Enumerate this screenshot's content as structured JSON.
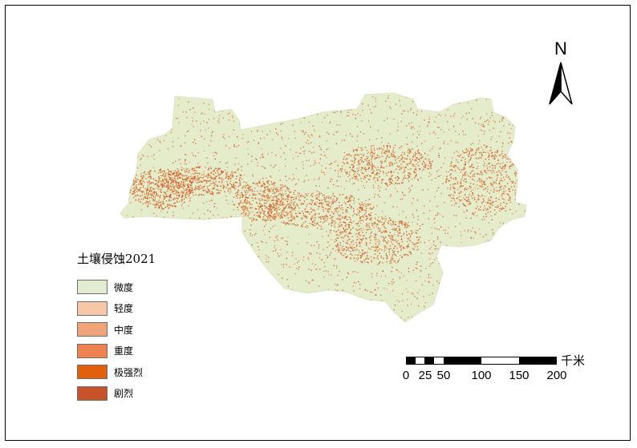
{
  "map": {
    "land_color": "#e4eccc",
    "dot_color": "#e07030",
    "dense_color": "#c85a28"
  },
  "legend": {
    "title": "土壤侵蚀2021",
    "items": [
      {
        "label": "微度",
        "color": "#e2ecd0"
      },
      {
        "label": "轻度",
        "color": "#f7c8a8"
      },
      {
        "label": "中度",
        "color": "#f0a47a"
      },
      {
        "label": "重度",
        "color": "#ee8250"
      },
      {
        "label": "极强烈",
        "color": "#e0600e"
      },
      {
        "label": "剧烈",
        "color": "#c8532a"
      }
    ]
  },
  "north_arrow": {
    "letter": "N"
  },
  "scale": {
    "unit": "千米",
    "ticks": [
      "0",
      "25",
      "50",
      "100",
      "150",
      "200"
    ]
  }
}
